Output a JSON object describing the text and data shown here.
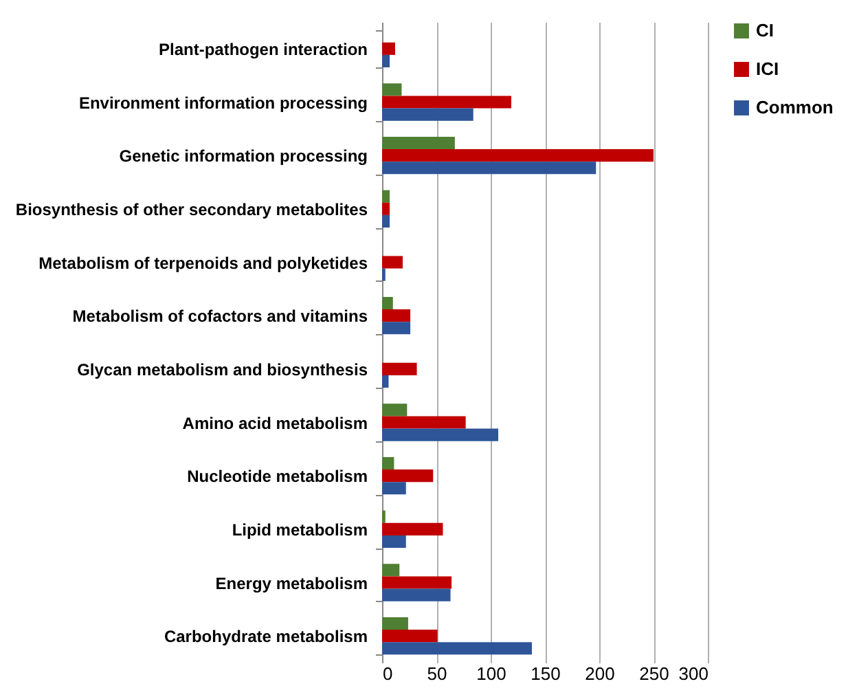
{
  "chart_data": {
    "type": "bar",
    "orientation": "horizontal",
    "categories": [
      "Plant-pathogen interaction",
      "Environment information processing",
      "Genetic information processing",
      "Biosynthesis of other secondary metabolites",
      "Metabolism of terpenoids and polyketides",
      "Metabolism of cofactors and vitamins",
      "Glycan metabolism and biosynthesis",
      "Amino acid metabolism",
      "Nucleotide metabolism",
      "Lipid metabolism",
      "Energy metabolism",
      "Carbohydrate metabolism"
    ],
    "series": [
      {
        "name": "CI",
        "color": "#4f7f32",
        "values": [
          0,
          18,
          67,
          7,
          0,
          10,
          0,
          23,
          11,
          3,
          16,
          24
        ]
      },
      {
        "name": "ICI",
        "color": "#c00000",
        "values": [
          12,
          119,
          250,
          7,
          19,
          26,
          32,
          77,
          47,
          56,
          64,
          51
        ]
      },
      {
        "name": "Common",
        "color": "#2e5597",
        "values": [
          7,
          84,
          197,
          7,
          3,
          26,
          6,
          107,
          22,
          22,
          63,
          138
        ]
      }
    ],
    "xlim": [
      0,
      300
    ],
    "xticks": [
      0,
      50,
      100,
      150,
      200,
      250,
      300
    ],
    "grid": "x",
    "legend": "right"
  }
}
